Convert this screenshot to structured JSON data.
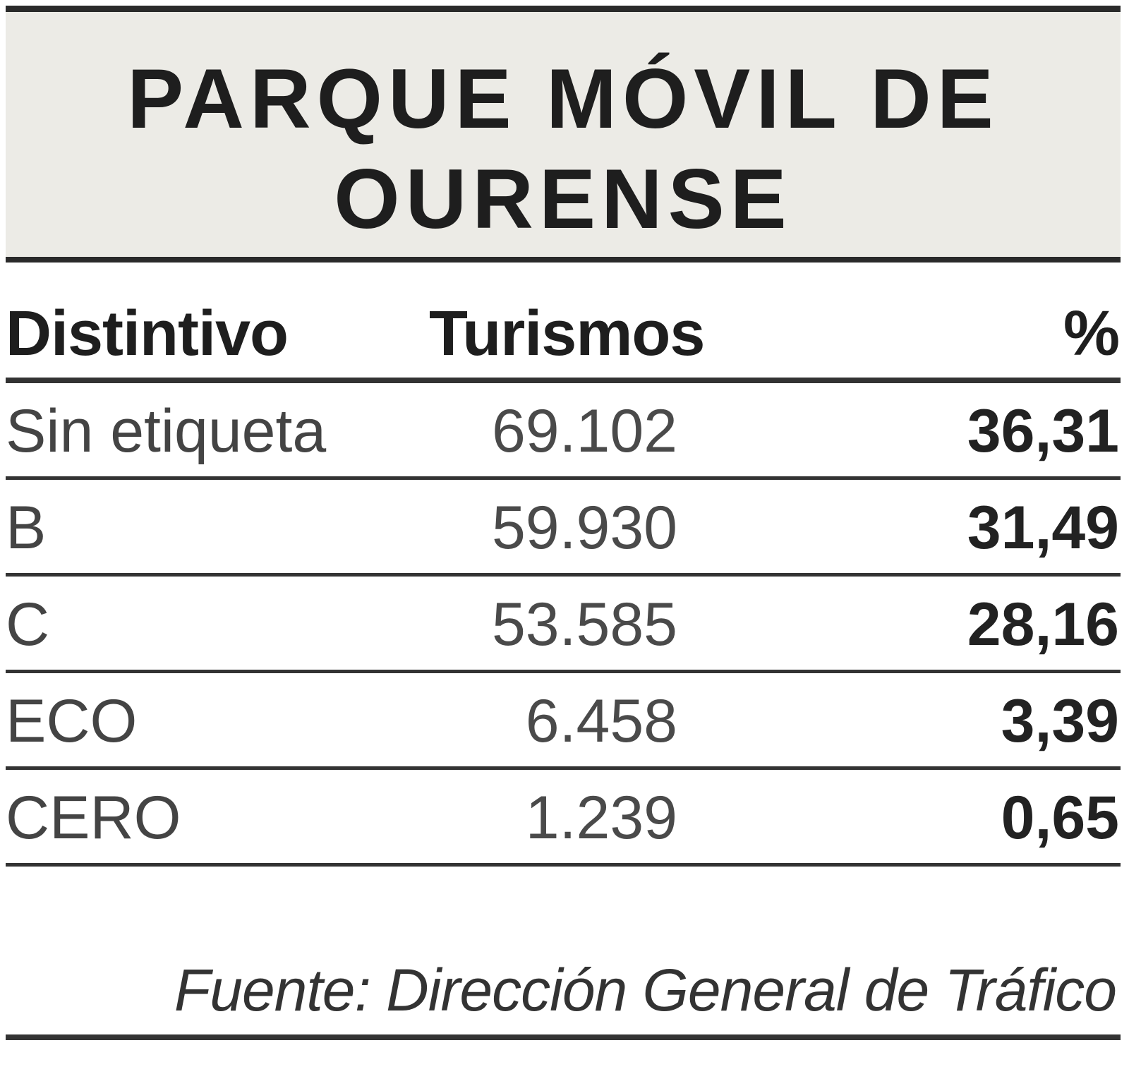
{
  "title": {
    "line1": "PARQUE MÓVIL DE",
    "line2": "OURENSE"
  },
  "table": {
    "headers": {
      "label": "Distintivo",
      "value": "Turismos",
      "pct": "%"
    },
    "rows": [
      {
        "label": "Sin etiqueta",
        "value": "69.102",
        "pct": "36,31"
      },
      {
        "label": "B",
        "value": "59.930",
        "pct": "31,49"
      },
      {
        "label": "C",
        "value": "53.585",
        "pct": "28,16"
      },
      {
        "label": "ECO",
        "value": "6.458",
        "pct": "3,39"
      },
      {
        "label": "CERO",
        "value": "1.239",
        "pct": "0,65"
      }
    ]
  },
  "source": "Fuente: Dirección General de Tráfico",
  "chart_data": {
    "type": "table",
    "title": "PARQUE MÓVIL DE OURENSE",
    "columns": [
      "Distintivo",
      "Turismos",
      "%"
    ],
    "categories": [
      "Sin etiqueta",
      "B",
      "C",
      "ECO",
      "CERO"
    ],
    "series": [
      {
        "name": "Turismos",
        "values": [
          69102,
          59930,
          53585,
          6458,
          1239
        ]
      },
      {
        "name": "%",
        "values": [
          36.31,
          31.49,
          28.16,
          3.39,
          0.65
        ]
      }
    ],
    "source": "Fuente: Dirección General de Tráfico"
  }
}
